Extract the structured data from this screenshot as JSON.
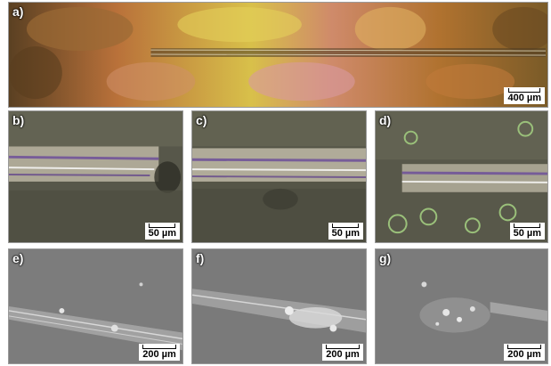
{
  "panels": [
    {
      "label": "a)",
      "scale": "400 µm"
    },
    {
      "label": "b)",
      "scale": "50 µm"
    },
    {
      "label": "c)",
      "scale": "50 µm"
    },
    {
      "label": "d)",
      "scale": "50 µm"
    },
    {
      "label": "e)",
      "scale": "200 µm"
    },
    {
      "label": "f)",
      "scale": "200 µm"
    },
    {
      "label": "g)",
      "scale": "200 µm"
    }
  ]
}
